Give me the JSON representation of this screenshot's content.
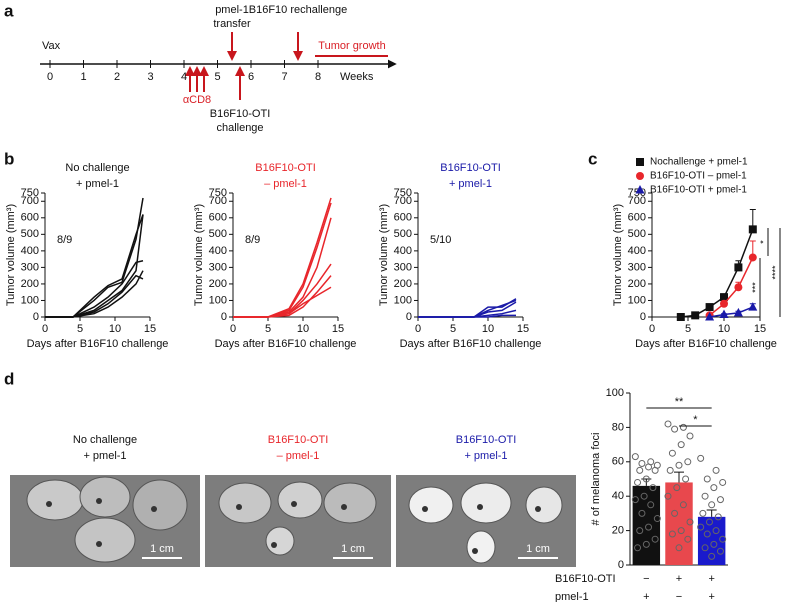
{
  "panel_labels": [
    "a",
    "b",
    "c",
    "d"
  ],
  "timeline": {
    "start": "Vax",
    "unit": "Weeks",
    "ticks": [
      0,
      1,
      2,
      3,
      4,
      5,
      6,
      7,
      8
    ],
    "antibody": "αCD8",
    "transfer": [
      "pmel-1",
      "transfer"
    ],
    "rechallenge": "B16F10 rechallenge",
    "challenge": [
      "B16F10-OTI",
      "challenge"
    ],
    "growth": "Tumor growth"
  },
  "chart_data": [
    {
      "type": "line",
      "title": [
        "No challenge",
        "+ pmel-1"
      ],
      "title_color": "#111111",
      "annotation": "8/9",
      "xlabel": "Days after B16F10 challenge",
      "ylabel": "Tumor volume (mm³)",
      "xlim": [
        0,
        15
      ],
      "ylim": [
        0,
        750
      ],
      "xticks": [
        0,
        5,
        10,
        15
      ],
      "yticks": [
        0,
        100,
        200,
        300,
        400,
        500,
        600,
        700,
        750
      ],
      "x": [
        0,
        4,
        7,
        9,
        11,
        13,
        14
      ],
      "series": [
        {
          "color": "#111111",
          "values": [
            0,
            0,
            100,
            180,
            210,
            470,
            720
          ]
        },
        {
          "color": "#111111",
          "values": [
            0,
            0,
            120,
            190,
            230,
            500,
            620
          ]
        },
        {
          "color": "#111111",
          "values": [
            0,
            0,
            60,
            120,
            200,
            330,
            340
          ]
        },
        {
          "color": "#111111",
          "values": [
            0,
            0,
            40,
            100,
            160,
            280,
            620
          ]
        },
        {
          "color": "#111111",
          "values": [
            0,
            0,
            20,
            60,
            120,
            200,
            280
          ]
        },
        {
          "color": "#111111",
          "values": [
            0,
            0,
            30,
            80,
            150,
            250,
            230
          ]
        }
      ]
    },
    {
      "type": "line",
      "title": [
        "B16F10-OTI",
        "– pmel-1"
      ],
      "title_color": "#e8262b",
      "annotation": "8/9",
      "xlabel": "Days after B16F10 challenge",
      "ylabel": "Tumor volume (mm³)",
      "xlim": [
        0,
        15
      ],
      "ylim": [
        0,
        750
      ],
      "xticks": [
        0,
        5,
        10,
        15
      ],
      "yticks": [
        0,
        100,
        200,
        300,
        400,
        500,
        600,
        700,
        750
      ],
      "x": [
        0,
        5,
        8,
        10,
        12,
        14
      ],
      "series": [
        {
          "color": "#e8262b",
          "values": [
            0,
            0,
            50,
            200,
            450,
            720
          ]
        },
        {
          "color": "#e8262b",
          "values": [
            0,
            0,
            40,
            180,
            420,
            690
          ]
        },
        {
          "color": "#e8262b",
          "values": [
            0,
            0,
            30,
            120,
            300,
            600
          ]
        },
        {
          "color": "#e8262b",
          "values": [
            0,
            0,
            20,
            100,
            200,
            320
          ]
        },
        {
          "color": "#e8262b",
          "values": [
            0,
            0,
            10,
            60,
            150,
            250
          ]
        },
        {
          "color": "#e8262b",
          "values": [
            0,
            0,
            20,
            80,
            130,
            180
          ]
        }
      ]
    },
    {
      "type": "line",
      "title": [
        "B16F10-OTI",
        "+ pmel-1"
      ],
      "title_color": "#1a1aa8",
      "annotation": "5/10",
      "xlabel": "Days after B16F10 challenge",
      "ylabel": "Tumor volume (mm³)",
      "xlim": [
        0,
        15
      ],
      "ylim": [
        0,
        750
      ],
      "xticks": [
        0,
        5,
        10,
        15
      ],
      "yticks": [
        0,
        100,
        200,
        300,
        400,
        500,
        600,
        700,
        750
      ],
      "x": [
        0,
        8,
        10,
        12,
        14
      ],
      "series": [
        {
          "color": "#1a1aa8",
          "values": [
            0,
            0,
            60,
            60,
            110
          ]
        },
        {
          "color": "#1a1aa8",
          "values": [
            0,
            0,
            40,
            70,
            100
          ]
        },
        {
          "color": "#1a1aa8",
          "values": [
            0,
            0,
            30,
            40,
            90
          ]
        },
        {
          "color": "#1a1aa8",
          "values": [
            0,
            0,
            10,
            20,
            40
          ]
        },
        {
          "color": "#1a1aa8",
          "values": [
            0,
            0,
            0,
            10,
            10
          ]
        }
      ]
    },
    {
      "type": "errorline",
      "xlabel": "Days after B16F10 challenge",
      "ylabel": "Tumor volume (mm³)",
      "xlim": [
        0,
        15
      ],
      "ylim": [
        0,
        750
      ],
      "xticks": [
        0,
        5,
        10,
        15
      ],
      "yticks": [
        0,
        100,
        200,
        300,
        400,
        500,
        600,
        700,
        750
      ],
      "legend": "upper left",
      "series": [
        {
          "name": "Nochallenge + pmel-1",
          "color": "#111111",
          "marker": "square",
          "x": [
            4,
            6,
            8,
            10,
            12,
            14
          ],
          "values": [
            0,
            10,
            60,
            120,
            300,
            530
          ],
          "errors": [
            0,
            5,
            10,
            20,
            40,
            120
          ]
        },
        {
          "name": "B16F10-OTI – pmel-1",
          "color": "#e8262b",
          "marker": "circle",
          "x": [
            8,
            10,
            12,
            14
          ],
          "values": [
            10,
            80,
            180,
            360
          ],
          "errors": [
            5,
            15,
            30,
            100
          ]
        },
        {
          "name": "B16F10-OTI + pmel-1",
          "color": "#1a1aa8",
          "marker": "triangle",
          "x": [
            8,
            10,
            12,
            14
          ],
          "values": [
            0,
            15,
            25,
            60
          ],
          "errors": [
            0,
            5,
            10,
            20
          ]
        }
      ],
      "significance": [
        "*",
        "***",
        "****"
      ]
    },
    {
      "type": "bar",
      "ylabel": "# of melanoma foci",
      "ylim": [
        0,
        100
      ],
      "yticks": [
        0,
        20,
        40,
        60,
        80,
        100
      ],
      "values": [
        46,
        48,
        28
      ],
      "errors": [
        4,
        6,
        4
      ],
      "colors": [
        "#111111",
        "#e8484d",
        "#1a1acc"
      ],
      "points": [
        [
          63,
          60,
          59,
          58,
          57,
          55,
          55,
          50,
          48,
          45,
          40,
          38,
          35,
          30,
          27,
          22,
          20,
          15,
          12,
          10
        ],
        [
          82,
          80,
          79,
          75,
          70,
          65,
          60,
          58,
          55,
          50,
          45,
          40,
          35,
          30,
          25,
          20,
          18,
          15,
          10
        ],
        [
          62,
          55,
          50,
          48,
          45,
          40,
          38,
          35,
          30,
          28,
          25,
          22,
          20,
          18,
          15,
          12,
          10,
          8,
          5
        ]
      ],
      "table": [
        {
          "label": "B16F10-OTI",
          "cells": [
            "−",
            "+",
            "+"
          ]
        },
        {
          "label": "pmel-1",
          "cells": [
            "+",
            "−",
            "+"
          ]
        }
      ],
      "significance": [
        "**",
        "*"
      ]
    }
  ],
  "photos": [
    {
      "title": [
        "No challenge",
        "+ pmel-1"
      ],
      "scale": "1 cm"
    },
    {
      "title": [
        "B16F10-OTI",
        "– pmel-1"
      ],
      "scale": "1 cm"
    },
    {
      "title": [
        "B16F10-OTI",
        "+ pmel-1"
      ],
      "scale": "1 cm"
    }
  ]
}
